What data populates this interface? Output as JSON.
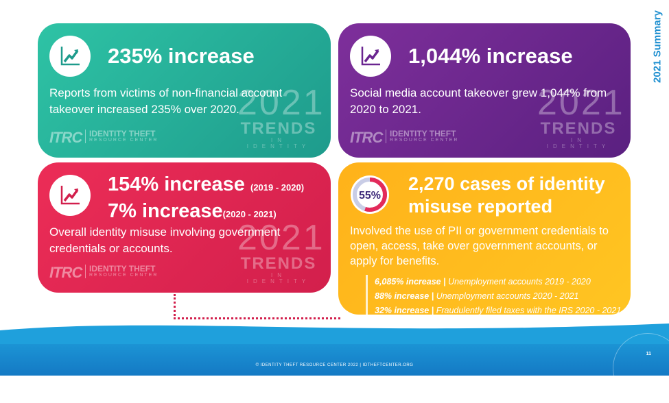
{
  "side_title": "2021 Summary",
  "cards": [
    {
      "headline": "235% increase",
      "body": "Reports from victims of non-financial account takeover increased 235% over 2020."
    },
    {
      "headline": "1,044% increase",
      "body": "Social media account takeover grew 1,044% from 2020 to 2021."
    },
    {
      "headline_line1": "154% increase",
      "headline_line1_note": "(2019 - 2020)",
      "headline_line2": "7% increase",
      "headline_line2_note": "(2020 - 2021)",
      "body": "Overall identity misuse involving government credentials or accounts."
    },
    {
      "donut_label": "55%",
      "donut_value": 0.55,
      "headline_line1": "2,270 cases of identity",
      "headline_line2": "misuse reported",
      "body": "Involved the use of PII or government credentials to open, access, take over government accounts, or apply for benefits.",
      "details": [
        {
          "bold": "6,085% increase |",
          "text": "Unemployment accounts 2019 - 2020"
        },
        {
          "bold": "88% increase |",
          "text": "Unemployment accounts 2020 - 2021"
        },
        {
          "bold": "32% increase |",
          "text": "Fraudulently filed taxes with the IRS  2020 - 2021"
        }
      ]
    }
  ],
  "logo": {
    "mark": "ITRC",
    "line1": "IDENTITY THEFT",
    "line2": "RESOURCE CENTER"
  },
  "watermark": {
    "year": "2021",
    "word": "TRENDS",
    "sub": "IN IDENTITY"
  },
  "footer": {
    "copyright": "© IDENTITY THEFT RESOURCE CENTER 2022  |  IDTHEFTCENTER.ORG",
    "page_number": "11"
  },
  "colors": {
    "teal": "#2ec3a5",
    "purple": "#7e2f9b",
    "pink": "#ec2d57",
    "yellow": "#ffb21a",
    "blue": "#1e8fd0"
  },
  "icons": [
    "trend-chart-icon",
    "donut-chart-icon"
  ]
}
